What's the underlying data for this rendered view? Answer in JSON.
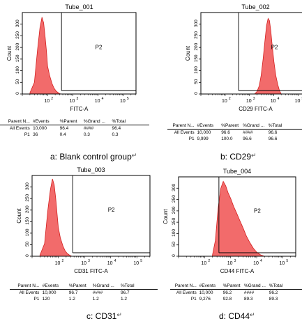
{
  "chart_data": [
    {
      "type": "area",
      "title": "Tube_001",
      "xlabel": "FITC-A",
      "ylabel": "Count",
      "xscale": "log",
      "xlim": [
        10,
        316228
      ],
      "ylim": [
        0,
        350
      ],
      "x_ticks": [
        {
          "label": "10",
          "sup": "2",
          "value": 100
        },
        {
          "label": "10",
          "sup": "3",
          "value": 1000
        },
        {
          "label": "10",
          "sup": "4",
          "value": 10000
        },
        {
          "label": "10",
          "sup": "5",
          "value": 100000
        }
      ],
      "y_ticks": [
        0,
        50,
        100,
        150,
        200,
        250,
        300
      ],
      "gate_label": "P2",
      "gate_x": 355,
      "histogram": {
        "x": [
          20,
          30,
          40,
          50,
          60,
          70,
          80,
          90,
          100,
          120,
          150,
          180,
          220,
          260,
          300,
          330
        ],
        "y": [
          5,
          50,
          190,
          285,
          330,
          305,
          245,
          185,
          120,
          80,
          45,
          25,
          12,
          6,
          2,
          0
        ]
      },
      "table": {
        "headers": [
          "Parent N...",
          "#Events",
          "%Parent",
          "%Grand ...",
          "%Total"
        ],
        "rows": [
          [
            "All Events",
            "10,000",
            "96.4",
            "####",
            "96.4"
          ],
          [
            "P1",
            "36",
            "0.4",
            "0.3",
            "0.3"
          ]
        ]
      },
      "caption_prefix": "a:",
      "caption": " Blank control group"
    },
    {
      "type": "area",
      "title": "Tube_002",
      "xlabel": "CD29 FITC-A",
      "ylabel": "Count",
      "xscale": "log",
      "xlim": [
        10,
        316228
      ],
      "ylim": [
        0,
        350
      ],
      "x_ticks": [
        {
          "label": "10",
          "sup": "2",
          "value": 100
        },
        {
          "label": "10",
          "sup": "3",
          "value": 1000
        },
        {
          "label": "10",
          "sup": "4",
          "value": 10000
        },
        {
          "label": "10",
          "sup": "5",
          "value": 100000
        }
      ],
      "y_ticks": [
        0,
        50,
        100,
        150,
        200,
        250,
        300
      ],
      "gate_label": "P2",
      "gate_x": 355,
      "histogram": {
        "x": [
          1600,
          2000,
          2500,
          3000,
          3600,
          4300,
          5000,
          5800,
          6600,
          7500,
          8500,
          10000,
          12000,
          14500,
          17000,
          20000
        ],
        "y": [
          0,
          10,
          35,
          80,
          150,
          230,
          295,
          325,
          315,
          270,
          210,
          140,
          80,
          40,
          15,
          0
        ]
      },
      "table": {
        "headers": [
          "Parent N...",
          "#Events",
          "%Parent",
          "%Grand ...",
          "%Total"
        ],
        "rows": [
          [
            "All Events",
            "10,000",
            "96.6",
            "####",
            "96.6"
          ],
          [
            "P1",
            "9,999",
            "100.0",
            "96.6",
            "96.6"
          ]
        ]
      },
      "caption_prefix": "b:",
      "caption": " CD29"
    },
    {
      "type": "area",
      "title": "Tube_003",
      "xlabel": "CD31 FITC-A",
      "ylabel": "Count",
      "xscale": "log",
      "xlim": [
        10,
        316228
      ],
      "ylim": [
        0,
        350
      ],
      "x_ticks": [
        {
          "label": "10",
          "sup": "2",
          "value": 100
        },
        {
          "label": "10",
          "sup": "3",
          "value": 1000
        },
        {
          "label": "10",
          "sup": "4",
          "value": 10000
        },
        {
          "label": "10",
          "sup": "5",
          "value": 100000
        }
      ],
      "y_ticks": [
        0,
        50,
        100,
        150,
        200,
        250,
        300
      ],
      "gate_label": "P2",
      "gate_x": 355,
      "histogram": {
        "x": [
          20,
          30,
          40,
          50,
          60,
          70,
          80,
          90,
          100,
          120,
          150,
          180,
          220,
          260,
          300,
          330
        ],
        "y": [
          5,
          55,
          200,
          290,
          335,
          310,
          250,
          185,
          125,
          80,
          45,
          25,
          12,
          6,
          2,
          0
        ]
      },
      "table": {
        "headers": [
          "Parent N...",
          "#Events",
          "%Parent",
          "%Grand ...",
          "%Total"
        ],
        "rows": [
          [
            "All Events",
            "10,000",
            "96.7",
            "####",
            "96.7"
          ],
          [
            "P1",
            "120",
            "1.2",
            "1.2",
            "1.2"
          ]
        ]
      },
      "caption_prefix": "c:",
      "caption": " CD31"
    },
    {
      "type": "area",
      "title": "Tube_004",
      "xlabel": "CD44 FITC-A",
      "ylabel": "Count",
      "xscale": "log",
      "xlim": [
        10,
        316228
      ],
      "ylim": [
        0,
        350
      ],
      "x_ticks": [
        {
          "label": "10",
          "sup": "2",
          "value": 100
        },
        {
          "label": "10",
          "sup": "3",
          "value": 1000
        },
        {
          "label": "10",
          "sup": "4",
          "value": 10000
        },
        {
          "label": "10",
          "sup": "5",
          "value": 100000
        }
      ],
      "y_ticks": [
        0,
        50,
        100,
        150,
        200,
        250,
        300
      ],
      "gate_label": "P2",
      "gate_x": 355,
      "histogram": {
        "x": [
          200,
          260,
          330,
          420,
          520,
          650,
          800,
          1000,
          1300,
          1700,
          2200,
          3000,
          4000,
          5500,
          7500,
          10000,
          14000,
          20000
        ],
        "y": [
          5,
          70,
          210,
          300,
          330,
          310,
          280,
          255,
          220,
          190,
          160,
          125,
          90,
          60,
          35,
          18,
          6,
          0
        ]
      },
      "table": {
        "headers": [
          "Parent N...",
          "#Events",
          "%Parent",
          "%Grand ...",
          "%Total"
        ],
        "rows": [
          [
            "All Events",
            "10,000",
            "96.2",
            "####",
            "96.2"
          ],
          [
            "P1",
            "9,276",
            "92.8",
            "89.3",
            "89.3"
          ]
        ]
      },
      "caption_prefix": "d:",
      "caption": " CD44"
    }
  ],
  "arrow_glyph": "↵",
  "colors": {
    "fill": "#f26b6b",
    "stroke": "#d42020",
    "axis": "#000000",
    "gate": "#000000"
  }
}
